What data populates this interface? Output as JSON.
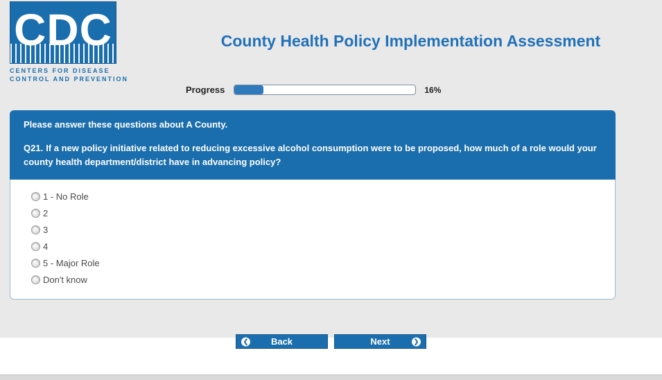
{
  "header": {
    "logo": {
      "acronym": "CDC",
      "tagline_line1": "CENTERS FOR DISEASE",
      "tagline_line2": "CONTROL AND PREVENTION"
    },
    "title": "County Health Policy Implementation Assessment"
  },
  "progress": {
    "label": "Progress",
    "percent": 16,
    "percent_text": "16%"
  },
  "question": {
    "intro": "Please answer these questions about A County.",
    "number": "Q21.",
    "text": "If a new policy initiative related to reducing excessive alcohol consumption were to be proposed, how much of a role would your county health department/district have in advancing policy?",
    "options": [
      {
        "label": "1 - No Role"
      },
      {
        "label": "2"
      },
      {
        "label": "3"
      },
      {
        "label": "4"
      },
      {
        "label": "5 - Major Role"
      },
      {
        "label": "Don't know"
      }
    ]
  },
  "buttons": {
    "back": "Back",
    "next": "Next"
  },
  "colors": {
    "brand_blue": "#1B6EAD",
    "title_blue": "#2171B9",
    "progress_fill": "#2e7abc"
  }
}
